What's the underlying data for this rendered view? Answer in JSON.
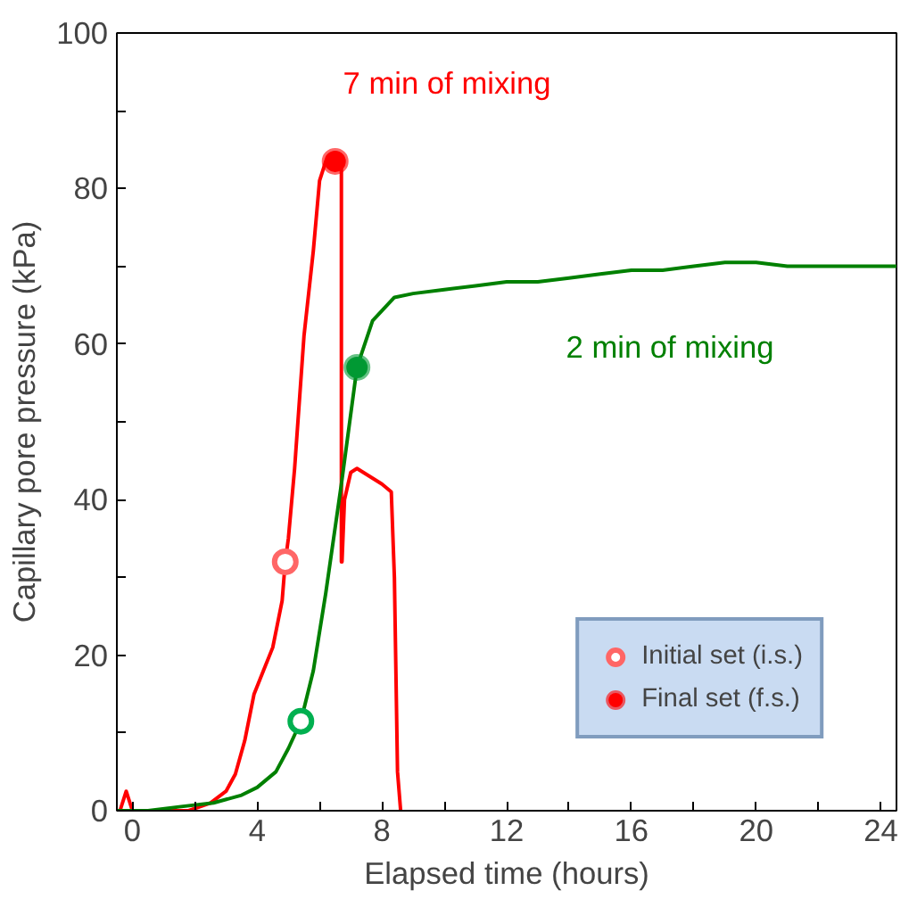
{
  "chart_data": {
    "type": "line",
    "xlabel": "Elapsed time (hours)",
    "ylabel": "Capillary pore pressure (kPa)",
    "xlim": [
      -0.5,
      24.5
    ],
    "ylim": [
      0,
      100
    ],
    "xticks": [
      0,
      {
        "value": 2,
        "label": null
      },
      4,
      {
        "value": 6,
        "label": null
      },
      8,
      {
        "value": 10,
        "label": null
      },
      12,
      {
        "value": 14,
        "label": null
      },
      16,
      {
        "value": 18,
        "label": null
      },
      20,
      {
        "value": 22,
        "label": null
      },
      24
    ],
    "yticks": [
      0,
      {
        "value": 10,
        "label": null
      },
      20,
      {
        "value": 30,
        "label": null
      },
      40,
      {
        "value": 50,
        "label": null
      },
      60,
      {
        "value": 70,
        "label": null
      },
      80,
      {
        "value": 90,
        "label": null
      },
      100
    ],
    "grid": false,
    "legend": "bottom right",
    "line_style": "solid",
    "series": [
      {
        "color": "#ff0000",
        "x": [
          -0.4,
          -0.2,
          0,
          0.5,
          1.8,
          2.5,
          3.0,
          3.3,
          3.6,
          3.9,
          4.2,
          4.5,
          4.8,
          4.9,
          5.0,
          5.2,
          5.5,
          5.8,
          6.0,
          6.2,
          6.4,
          6.7,
          6.7,
          6.72,
          6.8,
          7.0,
          7.2,
          7.6,
          8.0,
          8.3,
          8.4,
          8.5,
          8.6
        ],
        "values": [
          0,
          2.5,
          0,
          0,
          0,
          1,
          2.5,
          4.7,
          9,
          15,
          18,
          21,
          27,
          32,
          35,
          44,
          61,
          72,
          81,
          83.5,
          84,
          84,
          32,
          32,
          40,
          43.5,
          44,
          43,
          42,
          41,
          30,
          5,
          0
        ]
      },
      {
        "color": "#008000",
        "x": [
          -0.5,
          0.5,
          1.5,
          2.6,
          3.5,
          4.0,
          4.6,
          5.0,
          5.4,
          5.8,
          6.2,
          6.7,
          7.2,
          7.7,
          8.4,
          9,
          10,
          11,
          12,
          13,
          14,
          15,
          16,
          17,
          18,
          19,
          20,
          21,
          22,
          23,
          24,
          24.5
        ],
        "values": [
          0,
          0,
          0.5,
          1,
          2,
          3,
          5,
          8,
          11.5,
          18,
          28,
          42,
          57,
          63,
          66,
          66.5,
          67,
          67.5,
          68,
          68,
          68.5,
          69,
          69.5,
          69.5,
          70,
          70.5,
          70.5,
          70,
          70,
          70,
          70,
          70
        ]
      },
      {
        "type": "scatter",
        "name": "Initial set (i.s.)",
        "marker": "circle_open",
        "color": "#ffffff",
        "x": [
          4.9,
          5.4
        ],
        "values": [
          32,
          11.5
        ],
        "colors": [
          "#ff6666",
          "#00b050"
        ]
      },
      {
        "type": "scatter",
        "name": "Final set (f.s.)",
        "marker": "circle",
        "color": "#8064a2",
        "x": [
          6.5,
          7.2
        ],
        "values": [
          83.5,
          57
        ],
        "colors": [
          "#ff0000",
          "#009933"
        ]
      }
    ],
    "annotations": [
      "7 min of mixing",
      "2 min of mixing"
    ]
  }
}
